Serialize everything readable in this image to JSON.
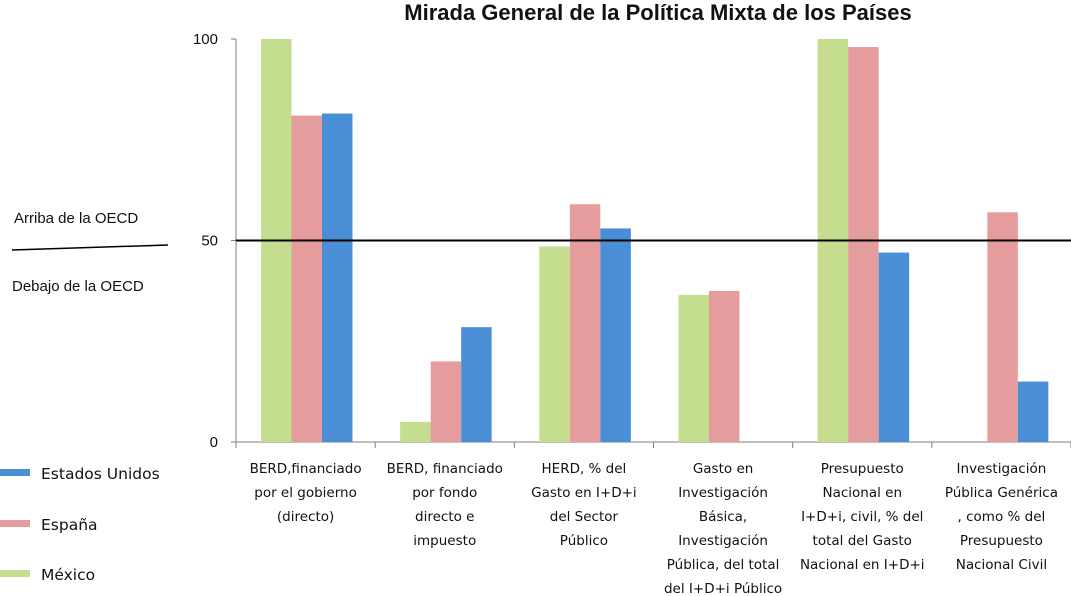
{
  "chart_data": {
    "type": "bar",
    "title": "Mirada General de la Política Mixta de los Países",
    "categories": [
      [
        "BERD,financiado",
        "por el gobierno",
        "(directo)"
      ],
      [
        "BERD, financiado",
        "por fondo",
        "directo e",
        "impuesto"
      ],
      [
        "HERD, % del",
        "Gasto en I+D+i",
        "del Sector",
        "Público"
      ],
      [
        "Gasto en",
        "Investigación",
        "Básica,",
        "Investigación",
        "Pública, del total",
        "del I+D+i Público"
      ],
      [
        "Presupuesto",
        "Nacional en",
        "I+D+i, civil, % del",
        "total del Gasto",
        "Nacional en I+D+i"
      ],
      [
        "Investigación",
        "Pública Genérica",
        ", como % del",
        "Presupuesto",
        "Nacional Civil"
      ]
    ],
    "series": [
      {
        "name": "México",
        "color": "#c5dd8e",
        "values": [
          100,
          5,
          48.5,
          36.5,
          100,
          null
        ]
      },
      {
        "name": "España",
        "color": "#e59c9c",
        "values": [
          81,
          20,
          59,
          37.5,
          98,
          57
        ]
      },
      {
        "name": "Estados Unidos",
        "color": "#4a8fd6",
        "values": [
          81.5,
          28.5,
          53,
          null,
          47,
          15
        ]
      }
    ],
    "legend_order": [
      "Estados Unidos",
      "España",
      "México"
    ],
    "yticks": [
      0,
      50,
      100
    ],
    "ylim": [
      0,
      100
    ],
    "reference_line": {
      "value": 50,
      "label_above": "Arriba de la OECD",
      "label_below": "Debajo de la OECD"
    },
    "legend_position": "bottom-left"
  }
}
